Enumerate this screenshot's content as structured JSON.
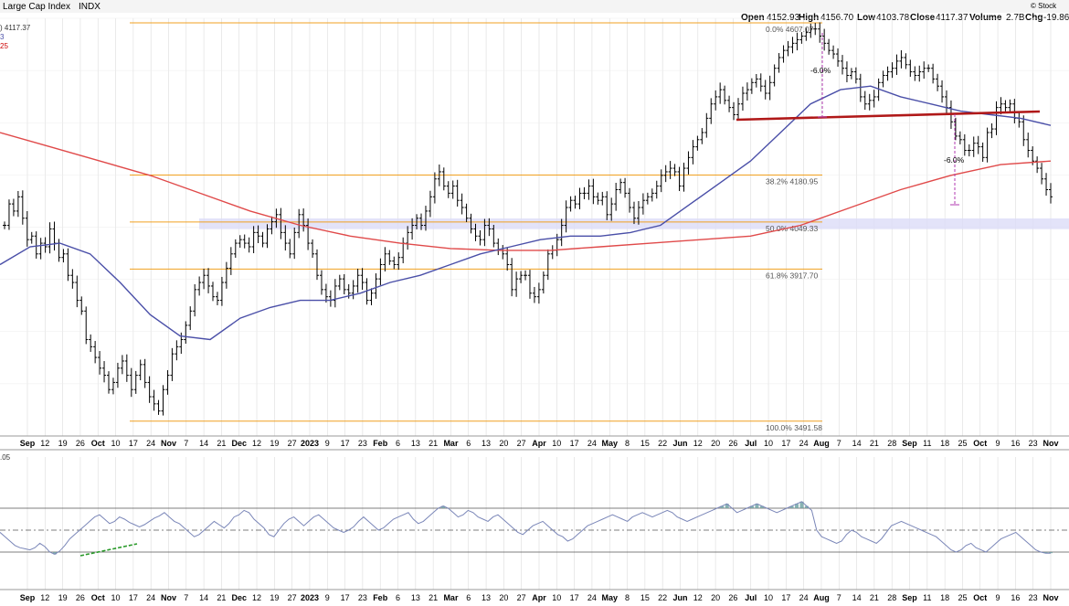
{
  "header": {
    "title": "Large Cap Index",
    "exchange": "INDX",
    "logo_text": "© Stock",
    "change_text": "-19.86",
    "ohlc": {
      "open_label": "Open",
      "open": "4152.93",
      "high_label": "High",
      "high": "4156.70",
      "low_label": "Low",
      "low": "4103.78",
      "close_label": "Close",
      "close": "4117.37",
      "volume_label": "Volume",
      "volume": "2.7B",
      "chg_label": "Chg"
    },
    "legend_last": ") 4117.37",
    "legend_line2": "3",
    "legend_line3": "25",
    "rsi_label": ".05"
  },
  "colors": {
    "price_bars": "#000000",
    "ma_short": "#4a4fa8",
    "ma_long": "#e04a4a",
    "fib_line": "#f0a020",
    "neckline": "#b01818",
    "annotation": "#b03ab0",
    "zone": "#dcdcf8",
    "rsi_line": "#7a86b8",
    "rsi_fill": "#6aa0a0",
    "divergence": "#2a9a2a",
    "grid": "#dcdcdc"
  },
  "chart_data": [
    {
      "type": "line",
      "title": "Large Cap Index",
      "ylim": [
        3450,
        4620
      ],
      "x_ticks": [
        "Sep",
        "12",
        "19",
        "26",
        "Oct",
        "10",
        "17",
        "24",
        "Nov",
        "7",
        "14",
        "21",
        "Dec",
        "12",
        "19",
        "27",
        "2023",
        "9",
        "17",
        "23",
        "Feb",
        "6",
        "13",
        "21",
        "Mar",
        "6",
        "13",
        "20",
        "27",
        "Apr",
        "10",
        "17",
        "24",
        "May",
        "8",
        "15",
        "22",
        "Jun",
        "12",
        "20",
        "26",
        "Jul",
        "10",
        "17",
        "24",
        "Aug",
        "7",
        "14",
        "21",
        "28",
        "Sep",
        "11",
        "18",
        "25",
        "Oct",
        "9",
        "16",
        "23",
        "Nov"
      ],
      "bold_ticks": [
        "Sep",
        "Oct",
        "Nov",
        "Dec",
        "2023",
        "Feb",
        "Mar",
        "Apr",
        "May",
        "Jun",
        "Jul",
        "Aug"
      ],
      "series": [
        {
          "type": "ohlc",
          "values": [
            4040,
            4100,
            4080,
            4120,
            4060,
            4000,
            4010,
            3960,
            3990,
            3980,
            4030,
            3990,
            3950,
            3960,
            3900,
            3880,
            3830,
            3800,
            3720,
            3700,
            3670,
            3640,
            3620,
            3580,
            3600,
            3640,
            3660,
            3620,
            3580,
            3620,
            3650,
            3600,
            3560,
            3540,
            3520,
            3580,
            3620,
            3680,
            3700,
            3720,
            3760,
            3800,
            3860,
            3880,
            3900,
            3870,
            3840,
            3830,
            3880,
            3920,
            3960,
            3990,
            4000,
            3990,
            3980,
            4020,
            4010,
            3990,
            4030,
            4050,
            4070,
            4020,
            3990,
            3960,
            4020,
            4070,
            4040,
            3990,
            3960,
            3900,
            3860,
            3840,
            3830,
            3870,
            3890,
            3860,
            3850,
            3870,
            3900,
            3880,
            3830,
            3850,
            3890,
            3930,
            3960,
            3940,
            3930,
            3950,
            3990,
            4020,
            4040,
            4060,
            4040,
            4080,
            4120,
            4170,
            4190,
            4150,
            4130,
            4150,
            4110,
            4090,
            4060,
            4030,
            4010,
            4000,
            4040,
            4030,
            3990,
            3970,
            3960,
            3930,
            3860,
            3890,
            3900,
            3900,
            3850,
            3840,
            3860,
            3900,
            3960,
            3970,
            4000,
            4040,
            4090,
            4110,
            4100,
            4130,
            4130,
            4150,
            4120,
            4110,
            4120,
            4070,
            4100,
            4140,
            4160,
            4130,
            4090,
            4060,
            4090,
            4110,
            4120,
            4130,
            4150,
            4180,
            4190,
            4200,
            4190,
            4150,
            4200,
            4230,
            4260,
            4280,
            4300,
            4340,
            4380,
            4400,
            4420,
            4390,
            4370,
            4350,
            4380,
            4410,
            4420,
            4440,
            4450,
            4430,
            4410,
            4440,
            4480,
            4510,
            4530,
            4540,
            4550,
            4560,
            4570,
            4580,
            4590,
            4590,
            4570,
            4550,
            4530,
            4520,
            4500,
            4480,
            4460,
            4470,
            4450,
            4400,
            4380,
            4390,
            4400,
            4440,
            4460,
            4470,
            4480,
            4500,
            4510,
            4490,
            4470,
            4460,
            4470,
            4480,
            4480,
            4450,
            4430,
            4400,
            4370,
            4330,
            4290,
            4280,
            4250,
            4250,
            4270,
            4260,
            4230,
            4300,
            4310,
            4370,
            4380,
            4370,
            4380,
            4340,
            4330,
            4280,
            4250,
            4220,
            4200,
            4170,
            4140,
            4120
          ]
        },
        {
          "name": "",
          "type": "ma_short",
          "values": [
            3930,
            3980,
            3990,
            3960,
            3880,
            3790,
            3730,
            3720,
            3780,
            3810,
            3830,
            3830,
            3850,
            3880,
            3900,
            3930,
            3960,
            3980,
            4000,
            4010,
            4010,
            4020,
            4040,
            4100,
            4160,
            4220,
            4300,
            4380,
            4420,
            4430,
            4400,
            4380,
            4360,
            4350,
            4340,
            4320
          ]
        },
        {
          "name": "",
          "type": "ma_long",
          "values": [
            4300,
            4260,
            4220,
            4180,
            4130,
            4080,
            4040,
            4010,
            3990,
            3975,
            3970,
            3970,
            3980,
            3990,
            4000,
            4010,
            4040,
            4090,
            4140,
            4180,
            4210,
            4220
          ]
        }
      ],
      "fib_levels": [
        {
          "label": "0.0%",
          "value": 4607.07
        },
        {
          "label": "38.2%",
          "value": 4180.95
        },
        {
          "label": "50.0%",
          "value": 4049.33
        },
        {
          "label": "61.8%",
          "value": 3917.7
        },
        {
          "label": "100.0%",
          "value": 3491.58
        }
      ],
      "annotations": [
        "-6.0%",
        "-6.0%"
      ]
    },
    {
      "type": "line",
      "title": "RSI",
      "ylim": [
        0,
        100
      ],
      "levels": [
        70,
        50,
        30
      ],
      "values": [
        48,
        44,
        40,
        36,
        34,
        33,
        32,
        34,
        38,
        35,
        30,
        28,
        31,
        36,
        42,
        46,
        50,
        54,
        58,
        62,
        64,
        60,
        56,
        58,
        62,
        60,
        57,
        55,
        53,
        55,
        58,
        61,
        63,
        66,
        62,
        58,
        56,
        52,
        48,
        44,
        46,
        50,
        54,
        58,
        55,
        52,
        56,
        62,
        64,
        68,
        66,
        60,
        56,
        52,
        46,
        44,
        50,
        56,
        60,
        62,
        58,
        54,
        58,
        62,
        64,
        60,
        56,
        52,
        50,
        48,
        50,
        53,
        58,
        62,
        58,
        54,
        50,
        52,
        56,
        60,
        62,
        64,
        66,
        60,
        56,
        58,
        62,
        66,
        70,
        72,
        70,
        66,
        62,
        64,
        68,
        66,
        62,
        60,
        58,
        62,
        64,
        60,
        56,
        52,
        48,
        46,
        50,
        54,
        56,
        58,
        54,
        50,
        46,
        44,
        40,
        42,
        46,
        50,
        54,
        56,
        58,
        60,
        62,
        64,
        62,
        60,
        58,
        62,
        64,
        66,
        64,
        62,
        64,
        66,
        68,
        66,
        62,
        60,
        58,
        60,
        62,
        64,
        66,
        68,
        70,
        72,
        74,
        70,
        66,
        68,
        70,
        72,
        74,
        72,
        70,
        68,
        66,
        68,
        70,
        72,
        74,
        76,
        72,
        68,
        50,
        44,
        42,
        40,
        38,
        40,
        46,
        50,
        48,
        44,
        42,
        40,
        38,
        42,
        48,
        54,
        56,
        58,
        56,
        54,
        52,
        50,
        48,
        46,
        44,
        40,
        36,
        32,
        30,
        32,
        36,
        38,
        34,
        32,
        30,
        34,
        38,
        42,
        44,
        46,
        48,
        44,
        40,
        36,
        32,
        30,
        29,
        29
      ]
    }
  ]
}
